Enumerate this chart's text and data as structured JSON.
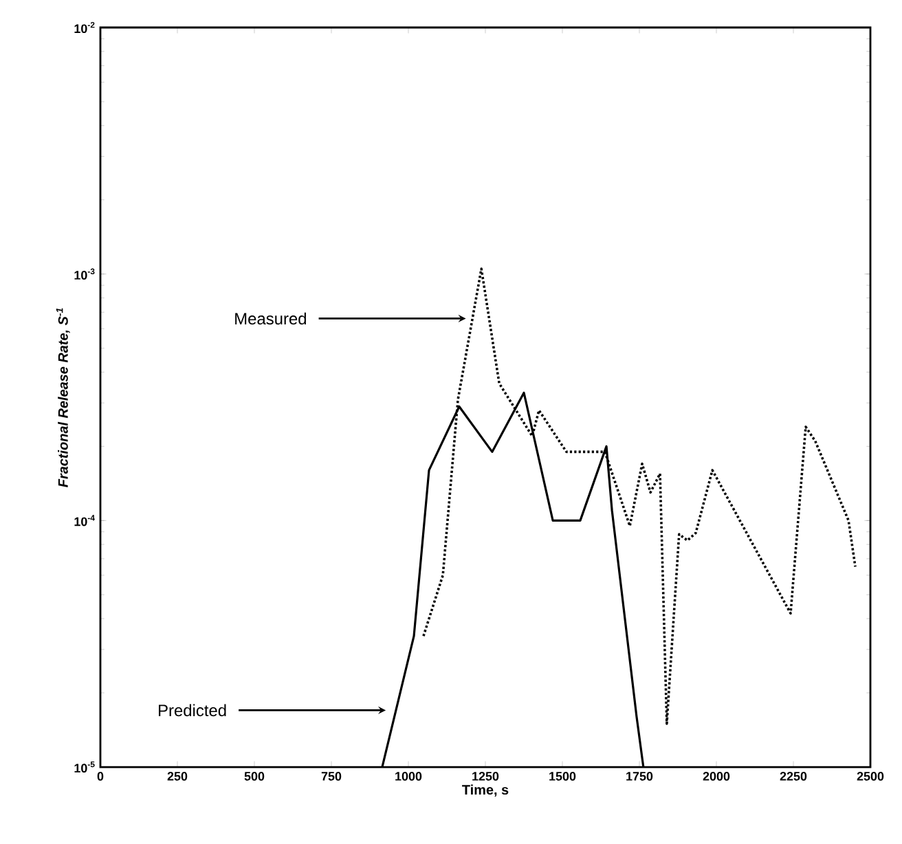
{
  "chart_data": {
    "type": "line",
    "xlabel": "Time, s",
    "ylabel": "Fractional Release Rate, S$^{-1}$",
    "log": "y",
    "grid": false,
    "marker": "none",
    "xlim": [
      0,
      2500
    ],
    "xticks": [
      0,
      250,
      500,
      750,
      1000,
      1250,
      1500,
      1750,
      2000,
      2250,
      2500
    ],
    "ylim": [
      1e-05,
      0.01
    ],
    "yticks": [
      {
        "value": 1e-05,
        "label": "10$^{-5}$"
      },
      {
        "value": 0.0001,
        "label": "10$^{-4}$"
      },
      {
        "value": 0.001,
        "label": "10$^{-3}$"
      },
      {
        "value": 0.01,
        "label": "10$^{-2}$"
      }
    ],
    "annotations": [
      {
        "text": "Measured",
        "x": 1200,
        "y": 0.00066
      },
      {
        "text": "Predicted",
        "x": 940,
        "y": 1.7e-05
      }
    ],
    "series": [
      {
        "color": "#000000",
        "line_style": "dotted",
        "x": [
          1049,
          1112,
          1161,
          1237,
          1295,
          1402,
          1424,
          1513,
          1638,
          1719,
          1759,
          1786,
          1817,
          1839,
          1879,
          1906,
          1933,
          1987,
          2241,
          2290,
          2321,
          2429,
          2451
        ],
        "values": [
          3.4e-05,
          6e-05,
          0.00031,
          0.00105,
          0.00036,
          0.00022,
          0.00028,
          0.00019,
          0.00019,
          9.5e-05,
          0.00017,
          0.00013,
          0.000155,
          1.5e-05,
          8.8e-05,
          8.3e-05,
          8.9e-05,
          0.00016,
          4.2e-05,
          0.00024,
          0.00021,
          0.0001,
          6.5e-05
        ]
      },
      {
        "color": "#000000",
        "line_style": "solid",
        "x": [
          915,
          1018,
          1067,
          1165,
          1272,
          1375,
          1469,
          1558,
          1643,
          1661,
          1741,
          1763
        ],
        "values": [
          1e-05,
          3.4e-05,
          0.00016,
          0.00029,
          0.00019,
          0.00033,
          0.0001,
          0.0001,
          0.0002,
          0.00011,
          1.6e-05,
          1e-05
        ]
      }
    ]
  }
}
